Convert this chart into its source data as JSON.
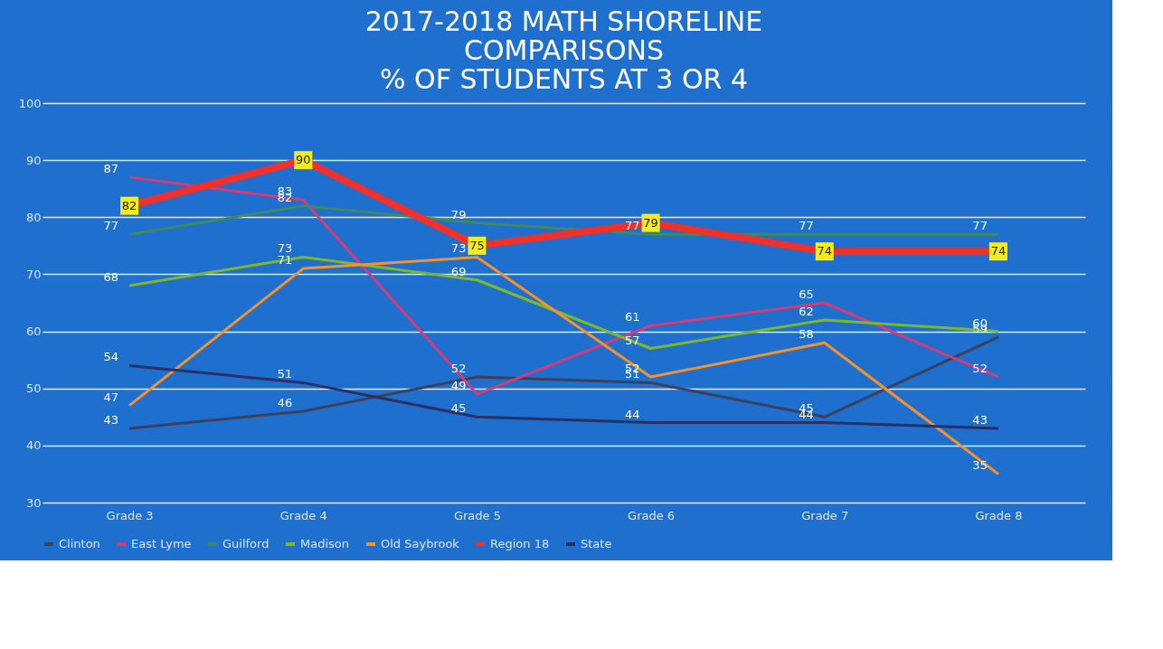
{
  "chart_data": {
    "type": "line",
    "title": [
      "2017-2018 MATH SHORELINE",
      "COMPARISONS",
      "% OF STUDENTS AT 3 OR 4"
    ],
    "categories": [
      "Grade 3",
      "Grade 4",
      "Grade 5",
      "Grade 6",
      "Grade 7",
      "Grade 8"
    ],
    "series": [
      {
        "name": "Clinton",
        "color": "#3b4158",
        "values": [
          43,
          46,
          52,
          51,
          45,
          59
        ]
      },
      {
        "name": "East Lyme",
        "color": "#d23c78",
        "values": [
          87,
          83,
          49,
          61,
          65,
          52
        ]
      },
      {
        "name": "Guilford",
        "color": "#3f8a60",
        "values": [
          77,
          82,
          79,
          77,
          77,
          77
        ]
      },
      {
        "name": "Madison",
        "color": "#7cb82a",
        "values": [
          68,
          73,
          69,
          57,
          62,
          60
        ]
      },
      {
        "name": "Old Saybrook",
        "color": "#f5922a",
        "values": [
          47,
          71,
          73,
          52,
          58,
          35
        ]
      },
      {
        "name": "Region 18",
        "color": "#f0302a",
        "values": [
          82,
          90,
          75,
          79,
          74,
          74
        ],
        "marker": "square"
      },
      {
        "name": "State",
        "color": "#2b2f63",
        "values": [
          54,
          51,
          45,
          44,
          44,
          43
        ]
      }
    ],
    "ylim": [
      30,
      100
    ],
    "yticks": [
      30,
      40,
      50,
      60,
      70,
      80,
      90,
      100
    ],
    "grid": "y",
    "legend": "bottom",
    "data_labels": true
  }
}
